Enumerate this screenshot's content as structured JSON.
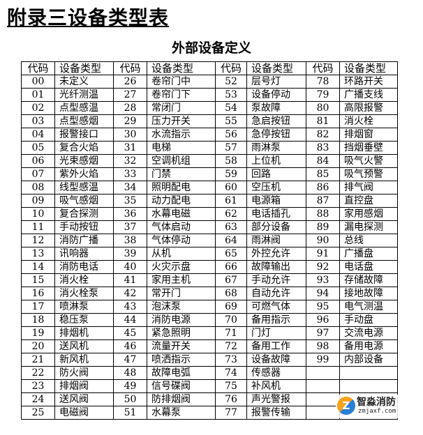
{
  "title": "附录三设备类型表",
  "subtitle": "外部设备定义",
  "headers": {
    "code": "代码",
    "type": "设备类型"
  },
  "rows": [
    [
      "00",
      "未定义",
      "26",
      "卷帘门中",
      "52",
      "层号灯",
      "78",
      "环路开关"
    ],
    [
      "01",
      "光纤测温",
      "27",
      "卷帘门下",
      "53",
      "设备停动",
      "79",
      "广播支线"
    ],
    [
      "02",
      "点型感温",
      "28",
      "常闭门",
      "54",
      "泵故障",
      "80",
      "高限报警"
    ],
    [
      "03",
      "点型感烟",
      "29",
      "压力开关",
      "55",
      "急启按钮",
      "81",
      "消火栓"
    ],
    [
      "04",
      "报警接口",
      "30",
      "水流指示",
      "56",
      "急停按钮",
      "82",
      "排烟窗"
    ],
    [
      "05",
      "复合火焰",
      "31",
      "电梯",
      "57",
      "雨淋泵",
      "83",
      "挡烟垂壁"
    ],
    [
      "06",
      "光束感烟",
      "32",
      "空调机组",
      "58",
      "上位机",
      "84",
      "吸气火警"
    ],
    [
      "07",
      "紫外火焰",
      "33",
      "门禁",
      "59",
      "回路",
      "85",
      "吸气预警"
    ],
    [
      "08",
      "线型感温",
      "34",
      "照明配电",
      "60",
      "空压机",
      "86",
      "排气阀"
    ],
    [
      "09",
      "吸气感烟",
      "35",
      "动力配电",
      "61",
      "电源箱",
      "87",
      "直控盘"
    ],
    [
      "10",
      "复合探测",
      "36",
      "水幕电磁",
      "62",
      "电话插孔",
      "88",
      "家用感烟"
    ],
    [
      "11",
      "手动按钮",
      "37",
      "气体启动",
      "63",
      "部分设备",
      "89",
      "漏电探测"
    ],
    [
      "12",
      "消防广播",
      "38",
      "气体停动",
      "64",
      "雨淋阀",
      "90",
      "总线"
    ],
    [
      "13",
      "讯响器",
      "39",
      "从机",
      "65",
      "外控允许",
      "91",
      "广播盘"
    ],
    [
      "14",
      "消防电话",
      "40",
      "火灾示盘",
      "66",
      "故障输出",
      "92",
      "电话盘"
    ],
    [
      "15",
      "消火栓",
      "41",
      "家用主机",
      "67",
      "手动允许",
      "93",
      "存储故障"
    ],
    [
      "16",
      "消火栓泵",
      "42",
      "常开门",
      "68",
      "自动允许",
      "94",
      "接地故障"
    ],
    [
      "17",
      "喷淋泵",
      "43",
      "泡沫泵",
      "69",
      "可燃气体",
      "95",
      "电气测温"
    ],
    [
      "18",
      "稳压泵",
      "44",
      "消防电源",
      "70",
      "备用指示",
      "96",
      "手动盘"
    ],
    [
      "19",
      "排烟机",
      "45",
      "紧急照明",
      "71",
      "门灯",
      "97",
      "交流电源"
    ],
    [
      "20",
      "送风机",
      "46",
      "流量开关",
      "72",
      "备用工作",
      "98",
      "备用电源"
    ],
    [
      "21",
      "新风机",
      "47",
      "喷洒指示",
      "73",
      "设备故障",
      "99",
      "内部设备"
    ],
    [
      "22",
      "防火阀",
      "48",
      "故障电弧",
      "74",
      "传感器",
      "",
      ""
    ],
    [
      "23",
      "排烟阀",
      "49",
      "信号碟阀",
      "75",
      "补风机",
      "",
      ""
    ],
    [
      "24",
      "送风阀",
      "50",
      "防排烟阀",
      "76",
      "声光警报",
      "",
      ""
    ],
    [
      "25",
      "电磁阀",
      "51",
      "水幕泵",
      "77",
      "报警传输",
      "",
      ""
    ]
  ],
  "watermark": {
    "name": "智淼消防",
    "url": "zmjaxf.com",
    "colors": [
      "#f7a21b",
      "#2a7fd4"
    ]
  }
}
